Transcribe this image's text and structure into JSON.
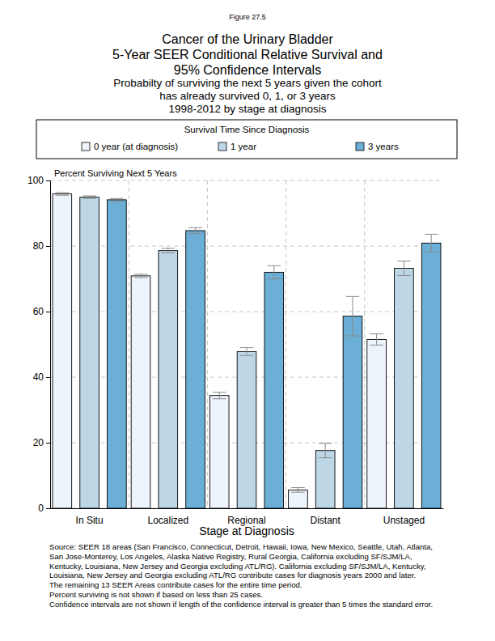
{
  "chart_data": {
    "type": "bar",
    "figure_label": "Figure 27.5",
    "title": [
      "Cancer of the Urinary Bladder",
      "5-Year SEER Conditional Relative Survival and",
      "95% Confidence Intervals"
    ],
    "subtitle": [
      "Probabilty of surviving the next 5 years given the cohort",
      "has already survived 0, 1, or 3 years",
      "1998-2012 by stage at diagnosis"
    ],
    "legend_title": "Survival Time Since Diagnosis",
    "legend": "top",
    "x_label": "Stage at Diagnosis",
    "y_label": "Percent Surviving Next 5 Years",
    "categories": [
      "In Situ",
      "Localized",
      "Regional",
      "Distant",
      "Unstaged"
    ],
    "series": [
      {
        "name": "0 year (at diagnosis)",
        "color": "#eef4fb",
        "values": [
          95.9,
          70.9,
          34.4,
          5.6,
          51.5
        ],
        "errors": [
          0.4,
          0.5,
          1.0,
          0.7,
          1.7
        ]
      },
      {
        "name": "1 year",
        "color": "#bdd7e7",
        "values": [
          94.9,
          78.6,
          47.8,
          17.6,
          73.2
        ],
        "errors": [
          0.4,
          0.7,
          1.2,
          2.2,
          2.2
        ]
      },
      {
        "name": "3 years",
        "color": "#6baed6",
        "values": [
          94.1,
          84.7,
          72.0,
          58.6,
          80.9
        ],
        "errors": [
          0.4,
          0.9,
          2.0,
          6.0,
          2.7
        ]
      }
    ],
    "ylim": [
      0,
      100
    ],
    "yticks": [
      0,
      20,
      40,
      60,
      80,
      100
    ],
    "grid": true,
    "notes": [
      "Source:  SEER 18 areas (San Francisco, Connecticut, Detroit, Hawaii, Iowa, New Mexico, Seattle, Utah, Atlanta,",
      "San Jose-Monterey, Los Angeles, Alaska Native Registry, Rural Georgia, California excluding SF/SJM/LA,",
      "Kentucky, Louisiana, New Jersey and Georgia excluding ATL/RG). California excluding SF/SJM/LA, Kentucky,",
      "Louisiana, New Jersey and Georgia excluding ATL/RG contribute cases for diagnosis years 2000 and later.",
      "The remaining 13 SEER Areas contribute cases for the entire time period.",
      "Percent surviving is not shown if based on less than 25 cases.",
      "Confidence intervals are not shown if length of the confidence interval is greater than 5 times the standard error."
    ]
  }
}
